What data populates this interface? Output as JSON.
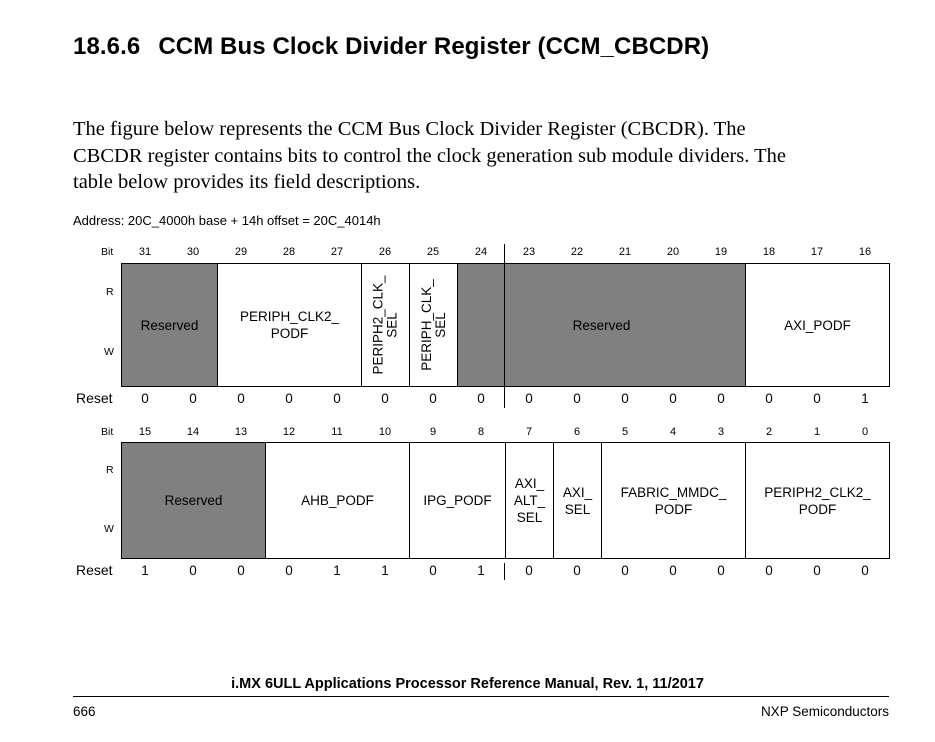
{
  "heading": {
    "number": "18.6.6",
    "title": "CCM Bus Clock Divider Register (CCM_CBCDR)"
  },
  "intro": [
    "The figure below represents the CCM Bus Clock Divider Register (CBCDR). The",
    "CBCDR register contains bits to control the clock generation sub module dividers. The",
    "table below provides its field descriptions."
  ],
  "address": "Address: 20C_4000h base + 14h offset = 20C_4014h",
  "labels": {
    "bit": "Bit",
    "r": "R",
    "w": "W",
    "reset": "Reset"
  },
  "upper": {
    "bits": [
      "31",
      "30",
      "29",
      "28",
      "27",
      "26",
      "25",
      "24",
      "23",
      "22",
      "21",
      "20",
      "19",
      "18",
      "17",
      "16"
    ],
    "fields": [
      {
        "name": "Reserved",
        "span": 2,
        "reserved": true
      },
      {
        "name": "PERIPH_CLK2_\nPODF",
        "span": 3
      },
      {
        "name": "PERIPH2_CLK_\nSEL",
        "span": 1,
        "vertical": true
      },
      {
        "name": "PERIPH_CLK_\nSEL",
        "span": 1,
        "vertical": true
      },
      {
        "name": "Reserved",
        "span": 6,
        "reserved": true
      },
      {
        "name": "AXI_PODF",
        "span": 3
      }
    ],
    "reset": [
      "0",
      "0",
      "0",
      "0",
      "0",
      "0",
      "0",
      "0",
      "0",
      "0",
      "0",
      "0",
      "0",
      "0",
      "0",
      "1"
    ]
  },
  "lower": {
    "bits": [
      "15",
      "14",
      "13",
      "12",
      "11",
      "10",
      "9",
      "8",
      "7",
      "6",
      "5",
      "4",
      "3",
      "2",
      "1",
      "0"
    ],
    "fields": [
      {
        "name": "Reserved",
        "span": 3,
        "reserved": true
      },
      {
        "name": "AHB_PODF",
        "span": 3
      },
      {
        "name": "IPG_PODF",
        "span": 2
      },
      {
        "name": "AXI_\nALT_\nSEL",
        "span": 1
      },
      {
        "name": "AXI_\nSEL",
        "span": 1
      },
      {
        "name": "FABRIC_MMDC_\nPODF",
        "span": 3
      },
      {
        "name": "PERIPH2_CLK2_\nPODF",
        "span": 3
      }
    ],
    "reset": [
      "1",
      "0",
      "0",
      "0",
      "1",
      "1",
      "0",
      "1",
      "0",
      "0",
      "0",
      "0",
      "0",
      "0",
      "0",
      "0"
    ]
  },
  "footer": {
    "manual": "i.MX 6ULL Applications Processor Reference Manual, Rev. 1, 11/2017",
    "page": "666",
    "company": "NXP Semiconductors"
  }
}
